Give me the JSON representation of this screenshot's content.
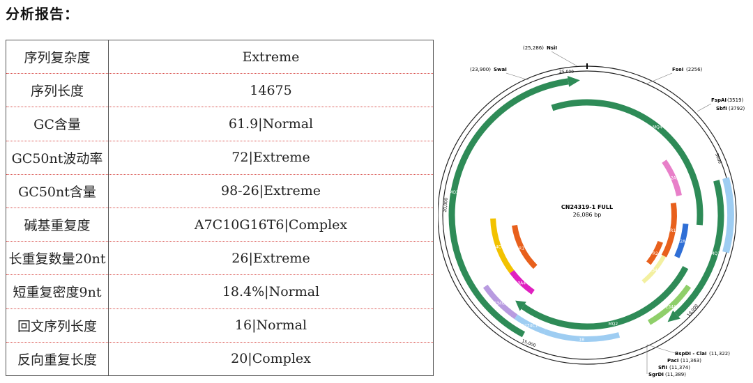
{
  "report_title": "分析报告：",
  "rows": [
    {
      "key": "序列复杂度",
      "value": "Extreme"
    },
    {
      "key": "序列长度",
      "value": "14675"
    },
    {
      "key": "GC含量",
      "value": "61.9|Normal"
    },
    {
      "key": "GC50nt波动率",
      "value": "72|Extreme"
    },
    {
      "key": "GC50nt含量",
      "value": "98-26|Extreme"
    },
    {
      "key": "碱基重复度",
      "value": "A7C10G16T6|Complex"
    },
    {
      "key": "长重复数量20nt",
      "value": "26|Extreme"
    },
    {
      "key": "短重复密度9nt",
      "value": "18.4%|Normal"
    },
    {
      "key": "回文序列长度",
      "value": "16|Normal"
    },
    {
      "key": "反向重复长度",
      "value": "20|Complex"
    }
  ],
  "plasmid": {
    "name": "CN24319-1 FULL",
    "size": "26,086 bp",
    "colors": {
      "backbone": "#2e8b57",
      "pink": "#e87fc9",
      "orange": "#e8601c",
      "yellow": "#f2c200",
      "magenta": "#e020c0",
      "blue": "#2f6fd6",
      "lightblue": "#9ecdf2",
      "lavender": "#b89be0",
      "green": "#8fcf6a",
      "paleyellow": "#f3f0a0"
    },
    "sites": [
      {
        "name": "NsiI",
        "pos": "(25,286)"
      },
      {
        "name": "SwaI",
        "pos": "(23,900)"
      },
      {
        "name": "FseI",
        "pos": "(2256)"
      },
      {
        "name": "FspAI",
        "pos": "(3519)"
      },
      {
        "name": "SbfI",
        "pos": "(3792)"
      },
      {
        "name": "BspDI - ClaI",
        "pos": "(11,322)"
      },
      {
        "name": "PacI",
        "pos": "(11,363)"
      },
      {
        "name": "SfiI",
        "pos": "(11,374)"
      },
      {
        "name": "SgrDI",
        "pos": "(11,389)"
      }
    ],
    "ticks": [
      "25,000",
      "5000",
      "10,000",
      "15,000",
      "20,000"
    ],
    "features": {
      "mq1": "MQ1",
      "mq2": "MQ2",
      "mq3": "MQ3",
      "mq4": "MQ4",
      "12a1": "12A1",
      "r1": "R1",
      "r2": "R2",
      "12a2": "12A2",
      "34c4": "34C4",
      "ol": "OL",
      "r1b": "R1",
      "r2b": "R2",
      "3a4": "3A4",
      "1234a3": "1234A3",
      "1234c2": "1234C2",
      "1234c1": "1234C1",
      "1b": "1B",
      "1234a4": "1234A4"
    }
  }
}
